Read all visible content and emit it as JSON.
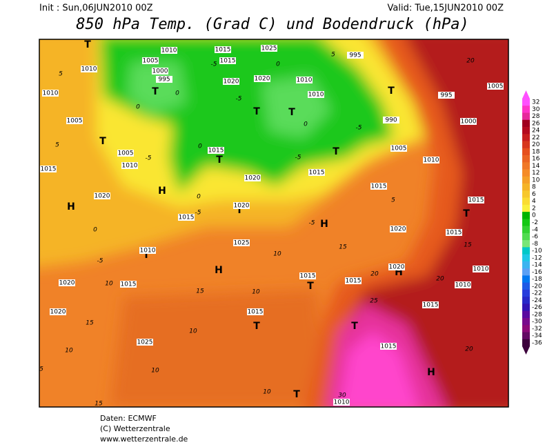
{
  "header": {
    "init": "Init : Sun,06JUN2010 00Z",
    "valid": "Valid: Tue,15JUN2010 00Z",
    "title": "850 hPa Temp. (Grad C) und Bodendruck (hPa)"
  },
  "colorbar": {
    "ticks": [
      32,
      30,
      28,
      26,
      24,
      22,
      20,
      18,
      16,
      14,
      12,
      10,
      8,
      6,
      4,
      2,
      0,
      -2,
      -4,
      -6,
      -8,
      -10,
      -12,
      -14,
      -16,
      -18,
      -20,
      -22,
      -24,
      -26,
      -28,
      -30,
      -32,
      -34,
      -36
    ],
    "colors": [
      "#ff50ff",
      "#ff32c8",
      "#e6289b",
      "#a0001e",
      "#b40a1e",
      "#c81e1e",
      "#d7371e",
      "#e6501e",
      "#eb6423",
      "#f07828",
      "#f58c28",
      "#f5a028",
      "#f5b428",
      "#f7c82d",
      "#fadc32",
      "#faf03c",
      "#00b400",
      "#14c814",
      "#32d232",
      "#50dc50",
      "#78e678",
      "#00c8c8",
      "#1ec8e6",
      "#3cb4f0",
      "#5aa0f5",
      "#0078f0",
      "#1e5ae6",
      "#283cdc",
      "#2828c8",
      "#3214b4",
      "#5a0aa0",
      "#780a8c",
      "#8c0a78",
      "#640a64",
      "#3c003c"
    ]
  },
  "map": {
    "pressure_centers": [
      "T",
      "T",
      "T",
      "T",
      "T",
      "T",
      "H",
      "H",
      "T",
      "T",
      "H",
      "T",
      "T",
      "T",
      "T",
      "T",
      "T",
      "H",
      "H",
      "T",
      "H"
    ],
    "isobar_labels": [
      1010,
      1005,
      1000,
      995,
      1010,
      1010,
      1005,
      1005,
      1010,
      1015,
      1020,
      1015,
      1020,
      1025,
      1010,
      1015,
      1020,
      1020,
      1025,
      1015,
      1015,
      1015,
      1015,
      1020,
      1020,
      1015,
      1010,
      1005,
      990,
      995,
      1000,
      1005,
      995,
      1010,
      1010,
      1020,
      1020,
      1015,
      1020,
      1025,
      1015,
      1015,
      1015,
      1015,
      1015,
      1010,
      1010,
      1010,
      1015
    ],
    "isotherm_labels": [
      0,
      -5,
      0,
      -5,
      0,
      0,
      -5,
      5,
      5,
      0,
      -5,
      10,
      15,
      15,
      10,
      10,
      10,
      5,
      15,
      10,
      10,
      15,
      20,
      20,
      25,
      30,
      20,
      15,
      20,
      10,
      -5,
      -5,
      5,
      -5,
      0,
      0,
      5,
      -5
    ]
  },
  "footer": {
    "source": "Daten: ECMWF",
    "copyright": "(C) Wetterzentrale",
    "url": "www.wetterzentrale.de"
  }
}
